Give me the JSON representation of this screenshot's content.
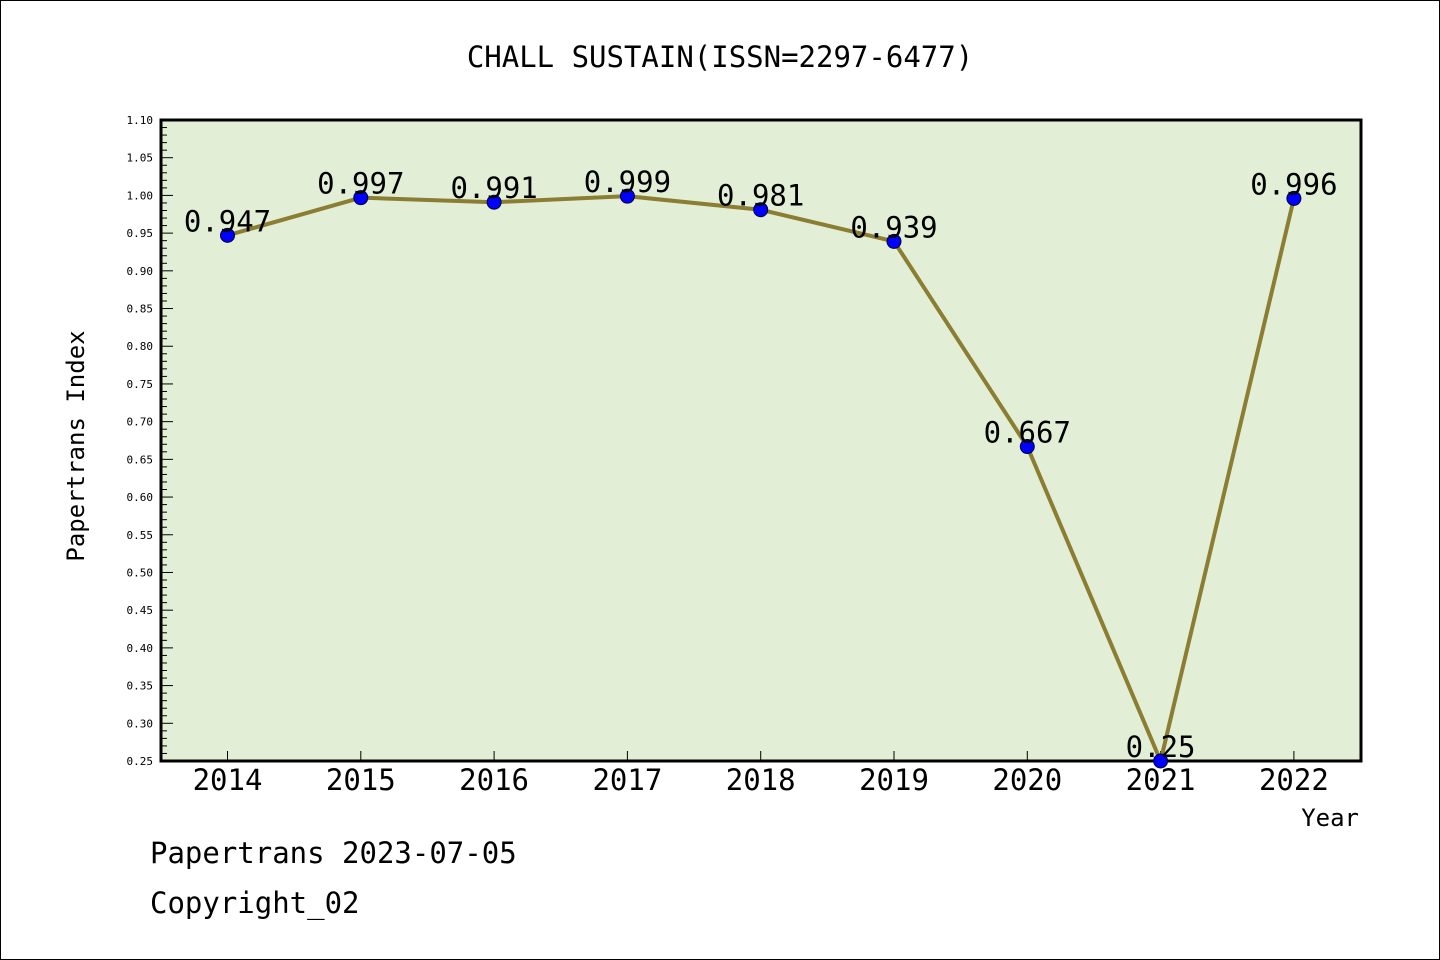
{
  "chart_data": {
    "type": "line",
    "title": "CHALL SUSTAIN(ISSN=2297-6477)",
    "xlabel": "Year",
    "ylabel": "Papertrans Index",
    "categories": [
      "2014",
      "2015",
      "2016",
      "2017",
      "2018",
      "2019",
      "2020",
      "2021",
      "2022"
    ],
    "series": [
      {
        "values": [
          0.947,
          0.997,
          0.991,
          0.999,
          0.981,
          0.939,
          0.667,
          0.25,
          0.996
        ],
        "labels": [
          "0.947",
          "0.997",
          "0.991",
          "0.999",
          "0.981",
          "0.939",
          "0.667",
          "0.25",
          "0.996"
        ]
      }
    ],
    "ylim": [
      0.25,
      1.1
    ],
    "yticks": [
      "0.25",
      "0.30",
      "0.35",
      "0.40",
      "0.45",
      "0.50",
      "0.55",
      "0.60",
      "0.65",
      "0.70",
      "0.75",
      "0.80",
      "0.85",
      "0.90",
      "0.95",
      "1.00",
      "1.05",
      "1.10"
    ],
    "grid": false,
    "legend": "none",
    "colors": {
      "plot_background": "#e2efd6",
      "line": "#8b7d32",
      "marker": "#0000ff",
      "axis": "#000000"
    }
  },
  "footer": {
    "line1": "Papertrans 2023-07-05",
    "line2": "Copyright_02"
  }
}
